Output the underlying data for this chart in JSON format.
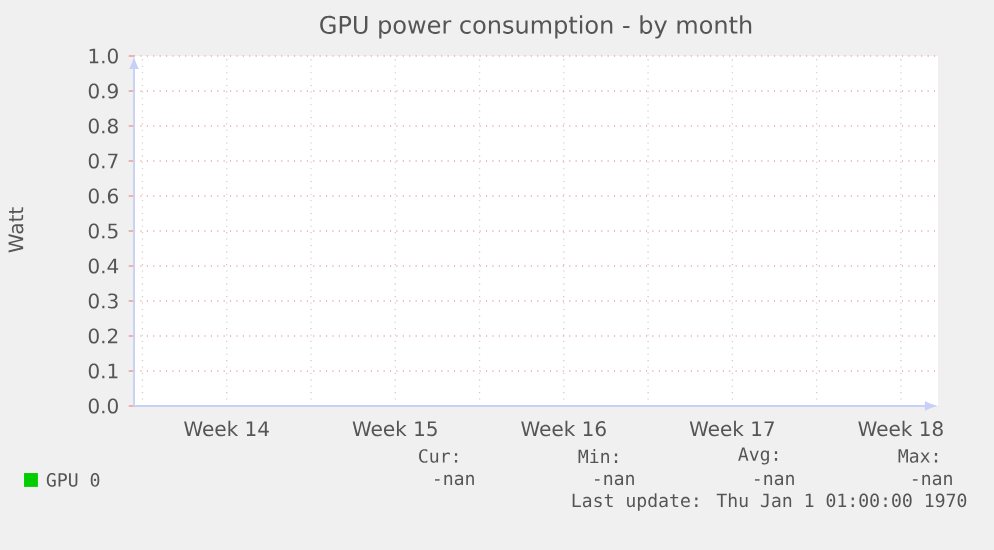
{
  "chart_data": {
    "type": "line",
    "title": "GPU power consumption - by month",
    "ylabel": "Watt",
    "categories": [
      "Week 14",
      "Week 15",
      "Week 16",
      "Week 17",
      "Week 18"
    ],
    "ylim": [
      0,
      1
    ],
    "yticks": [
      {
        "value": 0,
        "label": "0.0"
      },
      {
        "value": 0.1,
        "label": "0.1"
      },
      {
        "value": 0.2,
        "label": "0.2"
      },
      {
        "value": 0.3,
        "label": "0.3"
      },
      {
        "value": 0.4,
        "label": "0.4"
      },
      {
        "value": 0.5,
        "label": "0.5"
      },
      {
        "value": 0.6,
        "label": "0.6"
      },
      {
        "value": 0.7,
        "label": "0.7"
      },
      {
        "value": 0.8,
        "label": "0.8"
      },
      {
        "value": 0.9,
        "label": "0.9"
      },
      {
        "value": 1,
        "label": "1.0"
      }
    ],
    "grid": true,
    "legend": "bottom left",
    "series": [
      {
        "name": "GPU 0",
        "color": "#00cc00",
        "values": [
          null,
          null,
          null,
          null,
          null
        ]
      }
    ],
    "annotations": [
      "Cur:",
      "Min:",
      "Avg:",
      "Max:",
      "-nan",
      "-nan",
      "-nan",
      "-nan",
      "Last update: Thu Jan  1 01:00:00 1970"
    ]
  }
}
